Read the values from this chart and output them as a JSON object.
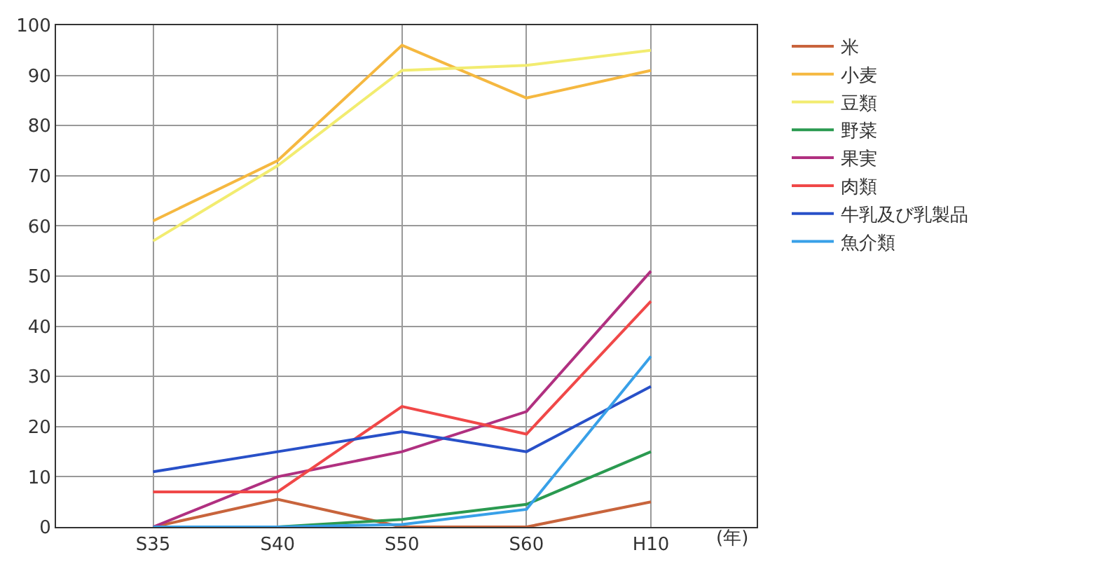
{
  "chart_data": {
    "type": "line",
    "xlabel": "(年)",
    "categories": [
      "S35",
      "S40",
      "S50",
      "S60",
      "H10"
    ],
    "ylim": [
      0,
      100
    ],
    "yticks": [
      0,
      10,
      20,
      30,
      40,
      50,
      60,
      70,
      80,
      90,
      100
    ],
    "grid": true,
    "legend": "right",
    "marker": "none",
    "line_style": "solid",
    "series": [
      {
        "name": "米",
        "color": "#c8643c",
        "values": [
          0,
          5.5,
          0,
          0,
          5
        ]
      },
      {
        "name": "小麦",
        "color": "#f5b840",
        "values": [
          61,
          73,
          96,
          85.5,
          91
        ]
      },
      {
        "name": "豆類",
        "color": "#f2ec70",
        "values": [
          57,
          72,
          91,
          92,
          95
        ]
      },
      {
        "name": "野菜",
        "color": "#2a9a50",
        "values": [
          0,
          0,
          1.5,
          4.5,
          15
        ]
      },
      {
        "name": "果実",
        "color": "#b03080",
        "values": [
          0,
          10,
          15,
          23,
          51
        ]
      },
      {
        "name": "肉類",
        "color": "#f04848",
        "values": [
          7,
          7,
          24,
          18.5,
          45
        ]
      },
      {
        "name": "牛乳及び乳製品",
        "color": "#2850c8",
        "values": [
          11,
          15,
          19,
          15,
          28
        ]
      },
      {
        "name": "魚介類",
        "color": "#38a0e8",
        "values": [
          0,
          0,
          0.5,
          3.5,
          34
        ]
      }
    ]
  }
}
